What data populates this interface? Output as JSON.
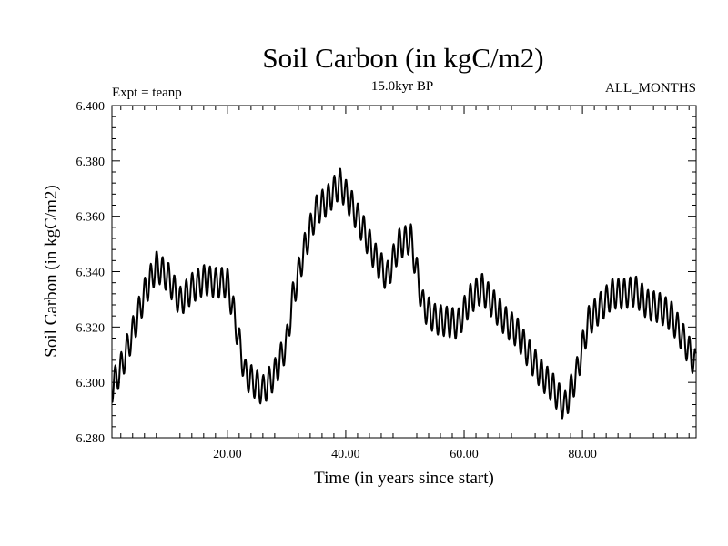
{
  "chart_data": {
    "type": "line",
    "title": "Soil Carbon (in kgC/m2)",
    "subtitle": "15.0kyr BP",
    "left_annotation": "Expt = teanp",
    "right_annotation": "ALL_MONTHS",
    "xlabel": "Time (in years since start)",
    "ylabel": "Soil Carbon (in kgC/m2)",
    "xlim": [
      0.5,
      99.2
    ],
    "ylim": [
      6.28,
      6.4
    ],
    "x_ticks": [
      20,
      40,
      60,
      80
    ],
    "x_tick_labels": [
      "20.00",
      "40.00",
      "60.00",
      "80.00"
    ],
    "y_ticks": [
      6.28,
      6.3,
      6.32,
      6.34,
      6.36,
      6.38,
      6.4
    ],
    "y_tick_labels": [
      "6.280",
      "6.300",
      "6.320",
      "6.340",
      "6.360",
      "6.380",
      "6.400"
    ],
    "grid": false,
    "trend": {
      "description": "annual mean soil carbon",
      "x": [
        0.5,
        2,
        4,
        6,
        8,
        10,
        12,
        14,
        16,
        18,
        20,
        21,
        23,
        26,
        28,
        30,
        31,
        33,
        35,
        37,
        39,
        41,
        43,
        45,
        47,
        49,
        51,
        53,
        55,
        57,
        59,
        61,
        63,
        65,
        67,
        69,
        71,
        73,
        75,
        77,
        79,
        81,
        83,
        85,
        87,
        89,
        91,
        93,
        95,
        97,
        99.2
      ],
      "y": [
        6.298,
        6.305,
        6.318,
        6.332,
        6.342,
        6.338,
        6.329,
        6.334,
        6.337,
        6.336,
        6.336,
        6.326,
        6.303,
        6.297,
        6.303,
        6.314,
        6.33,
        6.348,
        6.362,
        6.366,
        6.372,
        6.364,
        6.355,
        6.345,
        6.338,
        6.35,
        6.352,
        6.328,
        6.323,
        6.322,
        6.321,
        6.33,
        6.334,
        6.328,
        6.322,
        6.318,
        6.31,
        6.303,
        6.298,
        6.291,
        6.303,
        6.322,
        6.327,
        6.332,
        6.332,
        6.333,
        6.328,
        6.327,
        6.324,
        6.316,
        6.306
      ]
    },
    "seasonal_amplitude": 0.0055,
    "months_per_year": 12
  }
}
